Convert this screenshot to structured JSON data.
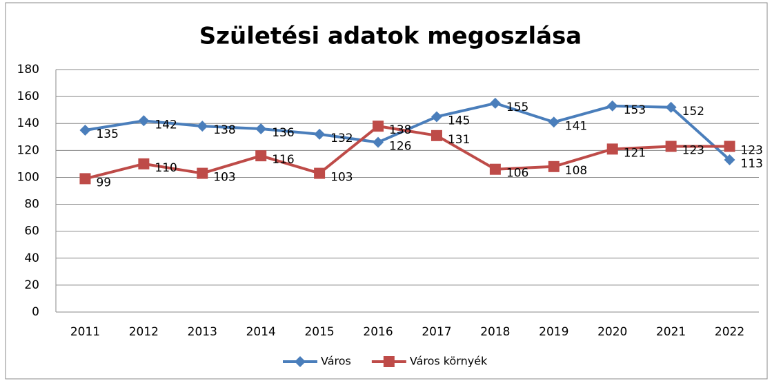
{
  "chart_data": {
    "type": "line",
    "title": "Születési adatok megoszlása",
    "categories": [
      "2011",
      "2012",
      "2013",
      "2014",
      "2015",
      "2016",
      "2017",
      "2018",
      "2019",
      "2020",
      "2021",
      "2022"
    ],
    "series": [
      {
        "name": "Város",
        "color": "#4a7ebb",
        "marker": "diamond",
        "values": [
          135,
          142,
          138,
          136,
          132,
          126,
          145,
          155,
          141,
          153,
          152,
          113
        ]
      },
      {
        "name": "Város környék",
        "color": "#be4b48",
        "marker": "square",
        "values": [
          99,
          110,
          103,
          116,
          103,
          138,
          131,
          106,
          108,
          121,
          123,
          123
        ]
      }
    ],
    "ylim": [
      0,
      180
    ],
    "yticks": [
      0,
      20,
      40,
      60,
      80,
      100,
      120,
      140,
      160,
      180
    ],
    "grid": true,
    "legend": "bottom"
  }
}
